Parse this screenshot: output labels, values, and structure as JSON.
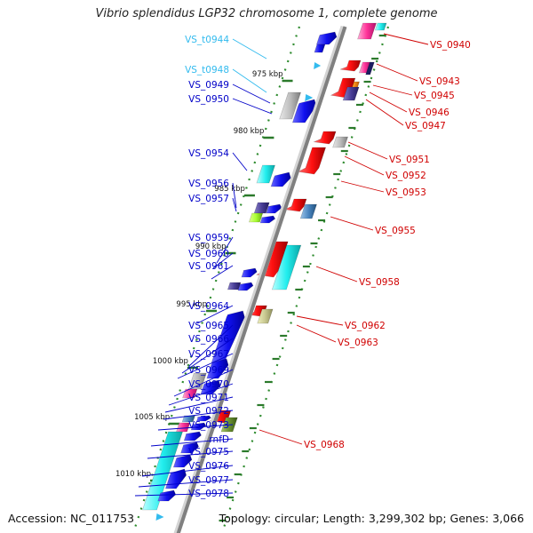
{
  "title": "Vibrio splendidus LGP32 chromosome 1, complete genome",
  "accession": "Accession: NC_011753",
  "topology": "Topology: circular; Length: 3,299,302 bp; Genes: 3,066",
  "colors": {
    "forward_label": "#d00000",
    "reverse_label": "#0000c8",
    "rna_label": "#33bbee",
    "backbone": "#8c8c8c",
    "tick": "#2b7a2b",
    "dots": "#2e8b2e"
  },
  "kbp_ticks": [
    "975 kbp",
    "980 kbp",
    "985 kbp",
    "990 kbp",
    "995 kbp",
    "1000 kbp",
    "1005 kbp",
    "1010 kbp"
  ],
  "labels_left": [
    {
      "text": "VS_t0944",
      "type": "rna"
    },
    {
      "text": "VS_t0948",
      "type": "rna"
    },
    {
      "text": "VS_0949",
      "type": "reverse"
    },
    {
      "text": "VS_0950",
      "type": "reverse"
    },
    {
      "text": "VS_0954",
      "type": "reverse"
    },
    {
      "text": "VS_0956",
      "type": "reverse"
    },
    {
      "text": "VS_0957",
      "type": "reverse"
    },
    {
      "text": "VS_0959",
      "type": "reverse"
    },
    {
      "text": "VS_0960",
      "type": "reverse"
    },
    {
      "text": "VS_0961",
      "type": "reverse"
    },
    {
      "text": "VS_0964",
      "type": "reverse"
    },
    {
      "text": "VS_0965",
      "type": "reverse"
    },
    {
      "text": "VS_0966",
      "type": "reverse"
    },
    {
      "text": "VS_0967",
      "type": "reverse"
    },
    {
      "text": "VS_0969",
      "type": "reverse"
    },
    {
      "text": "VS_0970",
      "type": "reverse"
    },
    {
      "text": "VS_0971",
      "type": "reverse"
    },
    {
      "text": "VS_0972",
      "type": "reverse"
    },
    {
      "text": "VS_0973",
      "type": "reverse"
    },
    {
      "text": "rnfD",
      "type": "reverse"
    },
    {
      "text": "VS_0975",
      "type": "reverse"
    },
    {
      "text": "VS_0976",
      "type": "reverse"
    },
    {
      "text": "VS_0977",
      "type": "reverse"
    },
    {
      "text": "VS_0978",
      "type": "reverse"
    }
  ],
  "labels_right": [
    {
      "text": "VS_0940",
      "type": "forward"
    },
    {
      "text": "VS_0943",
      "type": "forward"
    },
    {
      "text": "VS_0945",
      "type": "forward"
    },
    {
      "text": "VS_0946",
      "type": "forward"
    },
    {
      "text": "VS_0947",
      "type": "forward"
    },
    {
      "text": "VS_0951",
      "type": "forward"
    },
    {
      "text": "VS_0952",
      "type": "forward"
    },
    {
      "text": "VS_0953",
      "type": "forward"
    },
    {
      "text": "VS_0955",
      "type": "forward"
    },
    {
      "text": "VS_0958",
      "type": "forward"
    },
    {
      "text": "VS_0962",
      "type": "forward"
    },
    {
      "text": "VS_0963",
      "type": "forward"
    },
    {
      "text": "VS_0968",
      "type": "forward"
    }
  ]
}
